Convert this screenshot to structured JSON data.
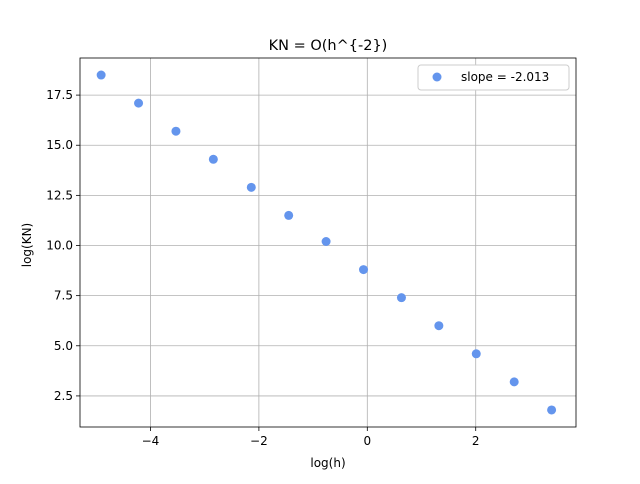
{
  "chart_data": {
    "type": "scatter",
    "title": "KN = O(h^{-2})",
    "xlabel": "log(h)",
    "ylabel": "log(KN)",
    "xlim": [
      -5.3,
      3.85
    ],
    "ylim": [
      0.95,
      19.35
    ],
    "xticks": [
      -4,
      -2,
      0,
      2
    ],
    "xtick_labels": [
      "−4",
      "−2",
      "0",
      "2"
    ],
    "yticks": [
      2.5,
      5.0,
      7.5,
      10.0,
      12.5,
      15.0,
      17.5
    ],
    "ytick_labels": [
      "2.5",
      "5.0",
      "7.5",
      "10.0",
      "12.5",
      "15.0",
      "17.5"
    ],
    "grid": true,
    "legend_placement": "top-right",
    "series": [
      {
        "name": "slope = -2.013",
        "color": "#6495ED",
        "x": [
          -4.91,
          -4.22,
          -3.53,
          -2.84,
          -2.14,
          -1.45,
          -0.76,
          -0.07,
          0.63,
          1.32,
          2.01,
          2.71,
          3.4
        ],
        "y": [
          18.5,
          17.1,
          15.7,
          14.3,
          12.9,
          11.5,
          10.2,
          8.8,
          7.4,
          6.0,
          4.6,
          3.2,
          1.8
        ]
      }
    ]
  }
}
